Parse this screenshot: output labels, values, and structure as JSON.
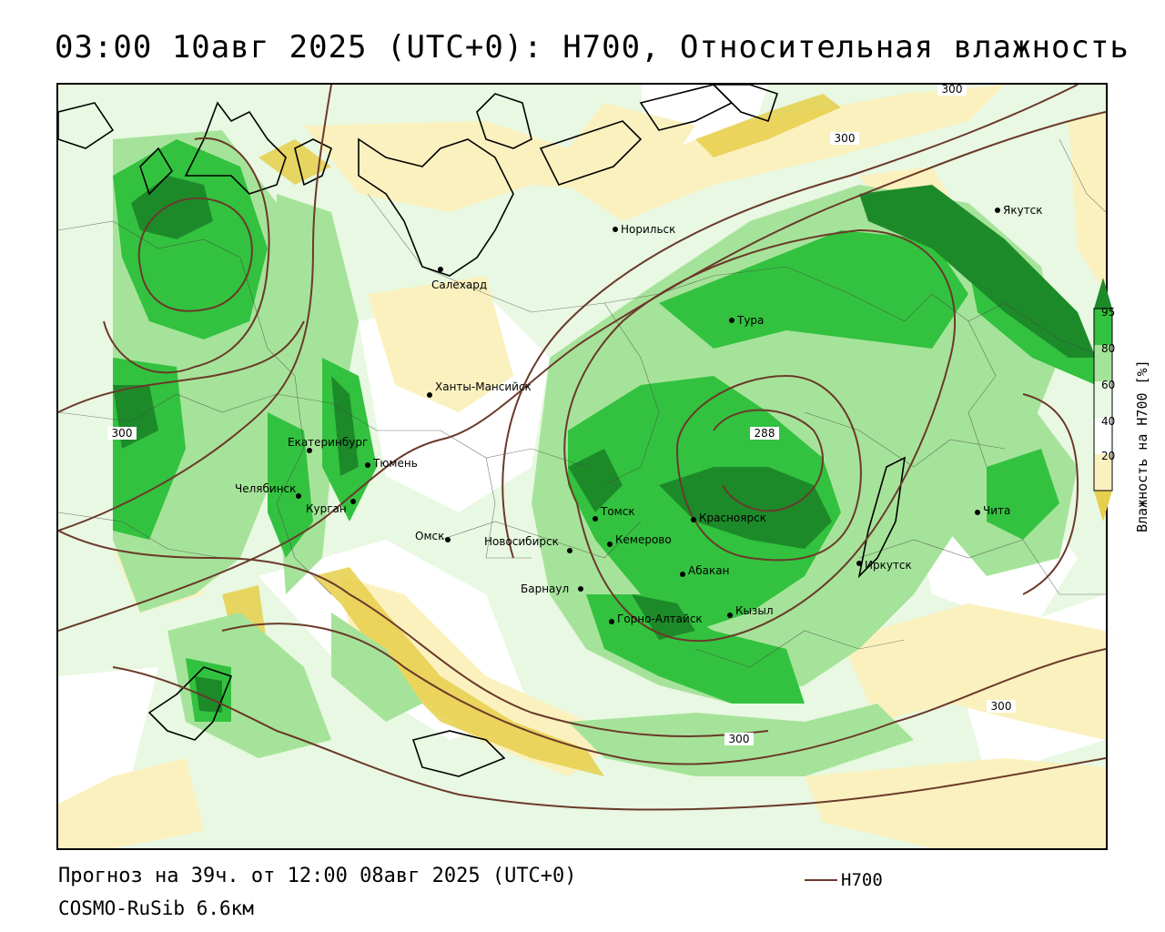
{
  "title": "03:00 10авг 2025 (UTC+0): H700, Относительная влажность",
  "footer": {
    "forecast": "Прогноз на 39ч. от 12:00 08авг 2025 (UTC+0)",
    "model": "COSMO-RuSib 6.6км"
  },
  "legend": {
    "line_label": "H700",
    "line_color": "#6a3a2a"
  },
  "colorbar": {
    "title": "Влажность на Н700 [%]",
    "ticks": [
      "95",
      "80",
      "60",
      "40",
      "20"
    ],
    "colors": {
      "c95": "#1d8a2a",
      "c80": "#33c23f",
      "c70": "#a6e39a",
      "c60": "#e8f8e2",
      "c40": "#ffffff",
      "c30": "#fbf1bf",
      "c20": "#e6cf4a"
    }
  },
  "map": {
    "cities": [
      {
        "name": "Норильск"
      },
      {
        "name": "Якутск"
      },
      {
        "name": "Салехард"
      },
      {
        "name": "Тура"
      },
      {
        "name": "Ханты-Мансийск"
      },
      {
        "name": "Екатеринбург"
      },
      {
        "name": "Тюмень"
      },
      {
        "name": "Челябинск"
      },
      {
        "name": "Курган"
      },
      {
        "name": "Омск"
      },
      {
        "name": "Новосибирск"
      },
      {
        "name": "Томск"
      },
      {
        "name": "Кемерово"
      },
      {
        "name": "Красноярск"
      },
      {
        "name": "Абакан"
      },
      {
        "name": "Барнаул"
      },
      {
        "name": "Горно-Алтайск"
      },
      {
        "name": "Кызыл"
      },
      {
        "name": "Иркутск"
      },
      {
        "name": "Чита"
      }
    ],
    "contour_labels": [
      "300",
      "300",
      "300",
      "288",
      "300",
      "300"
    ]
  }
}
